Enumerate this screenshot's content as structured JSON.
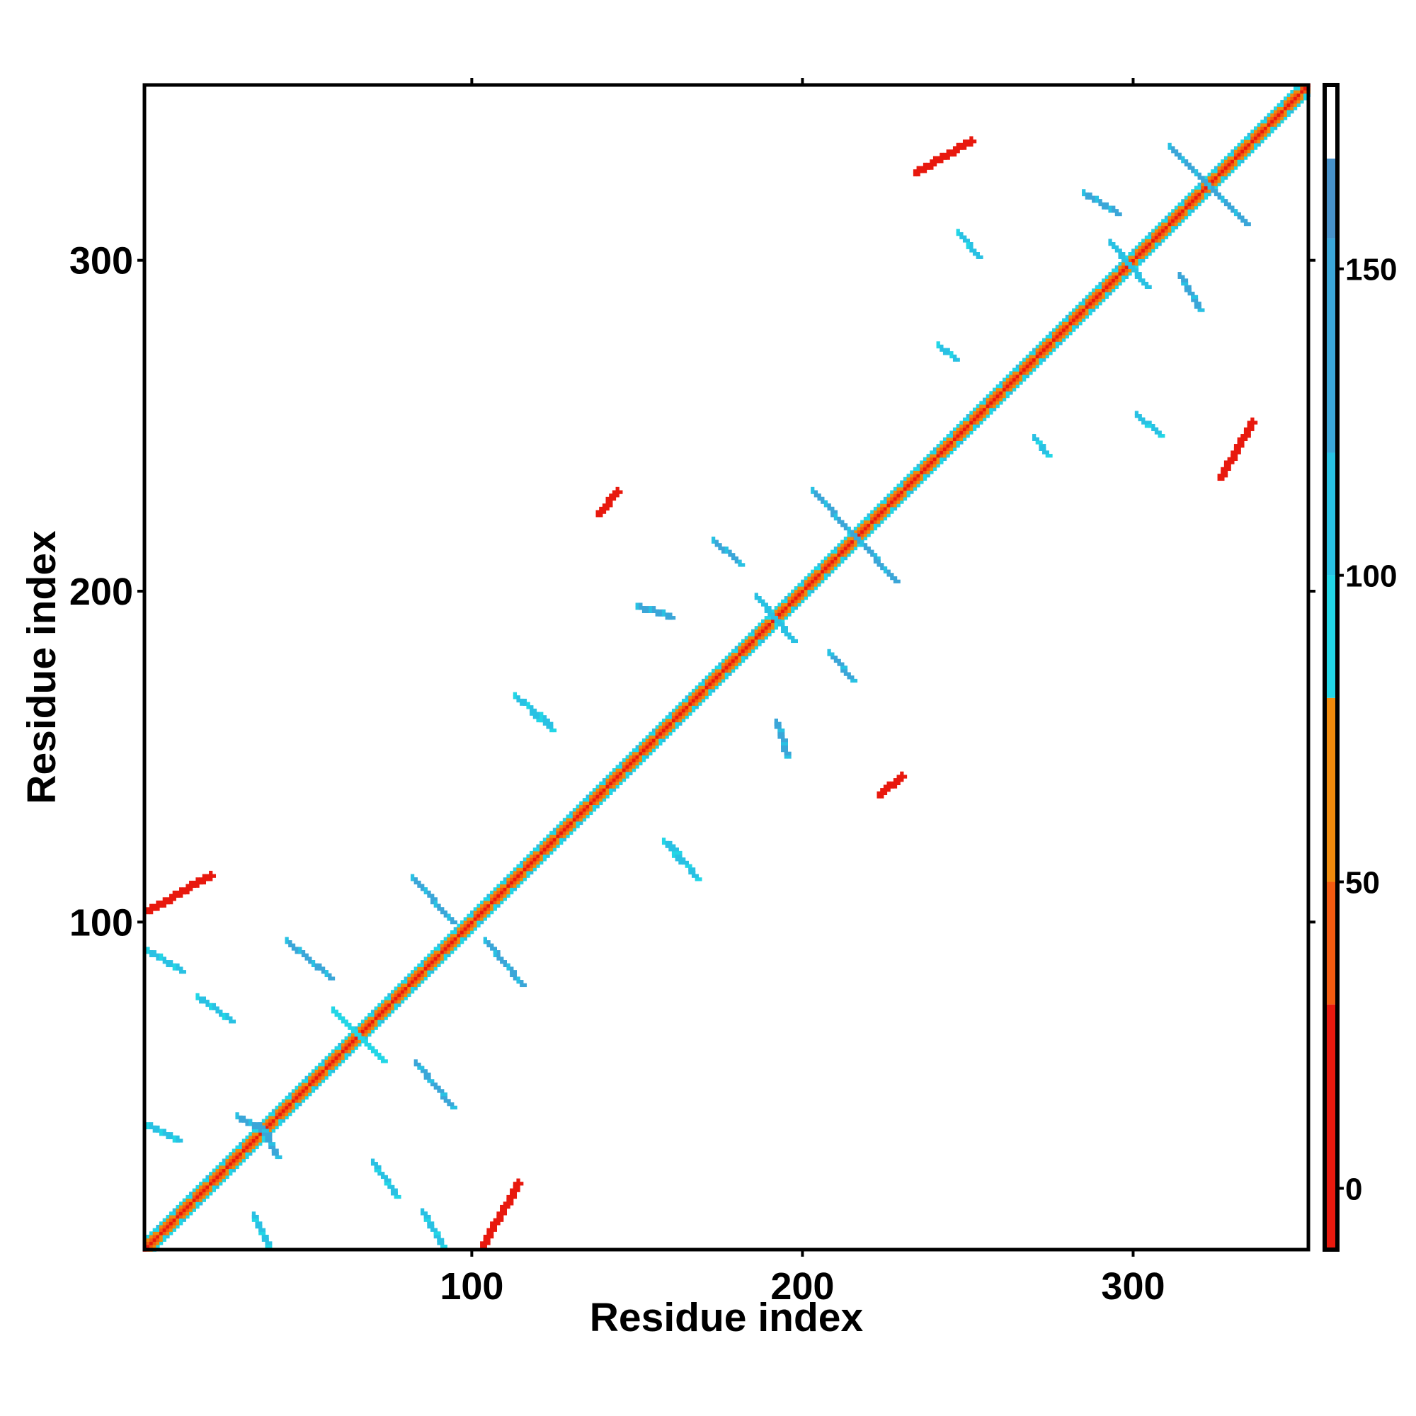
{
  "chart_data": {
    "type": "heatmap",
    "title": "",
    "xlabel": "Residue index",
    "ylabel": "Residue index",
    "xlim": [
      1,
      353
    ],
    "ylim": [
      1,
      353
    ],
    "x_ticks": [
      100,
      200,
      300
    ],
    "y_ticks": [
      100,
      200,
      300
    ],
    "colorbar": {
      "range": [
        -10,
        180
      ],
      "ticks": [
        0,
        50,
        100,
        150
      ],
      "bands": [
        {
          "from": -10,
          "to": 30,
          "color": "#e8190e"
        },
        {
          "from": 30,
          "to": 50,
          "color": "#f35b10"
        },
        {
          "from": 50,
          "to": 80,
          "color": "#f08a0c"
        },
        {
          "from": 80,
          "to": 100,
          "color": "#22d6e6"
        },
        {
          "from": 100,
          "to": 120,
          "color": "#29c1e3"
        },
        {
          "from": 120,
          "to": 155,
          "color": "#3ba6d8"
        },
        {
          "from": 155,
          "to": 168,
          "color": "#4791c9"
        },
        {
          "from": 168,
          "to": 180,
          "color": "#ffffff"
        }
      ]
    },
    "diagonal": {
      "from": 1,
      "to": 353
    },
    "contact_segments": [
      {
        "x1": 2,
        "y1": 103,
        "x2": 21,
        "y2": 114,
        "value": 25
      },
      {
        "x1": 103,
        "y1": 2,
        "x2": 114,
        "y2": 21,
        "value": 25
      },
      {
        "x1": 223,
        "y1": 138,
        "x2": 230,
        "y2": 144,
        "value": 25
      },
      {
        "x1": 138,
        "y1": 223,
        "x2": 144,
        "y2": 230,
        "value": 25
      },
      {
        "x1": 234,
        "y1": 326,
        "x2": 251,
        "y2": 336,
        "value": 25
      },
      {
        "x1": 326,
        "y1": 234,
        "x2": 336,
        "y2": 251,
        "value": 25
      },
      {
        "x1": 2,
        "y1": 91,
        "x2": 12,
        "y2": 85,
        "value": 105
      },
      {
        "x1": 91,
        "y1": 2,
        "x2": 85,
        "y2": 12,
        "value": 105
      },
      {
        "x1": 17,
        "y1": 77,
        "x2": 27,
        "y2": 70,
        "value": 100
      },
      {
        "x1": 77,
        "y1": 17,
        "x2": 70,
        "y2": 27,
        "value": 100
      },
      {
        "x1": 2,
        "y1": 38,
        "x2": 11,
        "y2": 34,
        "value": 110
      },
      {
        "x1": 38,
        "y1": 2,
        "x2": 34,
        "y2": 11,
        "value": 110
      },
      {
        "x1": 44,
        "y1": 94,
        "x2": 57,
        "y2": 83,
        "value": 125
      },
      {
        "x1": 94,
        "y1": 44,
        "x2": 83,
        "y2": 57,
        "value": 125
      },
      {
        "x1": 58,
        "y1": 73,
        "x2": 73,
        "y2": 58,
        "value": 95
      },
      {
        "x1": 82,
        "y1": 113,
        "x2": 94,
        "y2": 100,
        "value": 125
      },
      {
        "x1": 104,
        "y1": 94,
        "x2": 115,
        "y2": 81,
        "value": 125
      },
      {
        "x1": 203,
        "y1": 230,
        "x2": 228,
        "y2": 203,
        "value": 125
      },
      {
        "x1": 311,
        "y1": 334,
        "x2": 334,
        "y2": 311,
        "value": 125
      },
      {
        "x1": 186,
        "y1": 198,
        "x2": 197,
        "y2": 185,
        "value": 115
      },
      {
        "x1": 293,
        "y1": 305,
        "x2": 304,
        "y2": 292,
        "value": 115
      },
      {
        "x1": 150,
        "y1": 195,
        "x2": 160,
        "y2": 192,
        "value": 120
      },
      {
        "x1": 195,
        "y1": 150,
        "x2": 192,
        "y2": 160,
        "value": 120
      },
      {
        "x1": 158,
        "y1": 124,
        "x2": 163,
        "y2": 118,
        "value": 105
      },
      {
        "x1": 124,
        "y1": 158,
        "x2": 118,
        "y2": 163,
        "value": 105
      },
      {
        "x1": 173,
        "y1": 215,
        "x2": 181,
        "y2": 208,
        "value": 125
      },
      {
        "x1": 215,
        "y1": 173,
        "x2": 208,
        "y2": 181,
        "value": 125
      },
      {
        "x1": 285,
        "y1": 320,
        "x2": 295,
        "y2": 314,
        "value": 120
      },
      {
        "x1": 320,
        "y1": 285,
        "x2": 314,
        "y2": 295,
        "value": 120
      },
      {
        "x1": 247,
        "y1": 308,
        "x2": 253,
        "y2": 301,
        "value": 110
      },
      {
        "x1": 308,
        "y1": 247,
        "x2": 301,
        "y2": 253,
        "value": 110
      },
      {
        "x1": 241,
        "y1": 274,
        "x2": 246,
        "y2": 270,
        "value": 100
      },
      {
        "x1": 274,
        "y1": 241,
        "x2": 270,
        "y2": 246,
        "value": 100
      },
      {
        "x1": 29,
        "y1": 41,
        "x2": 38,
        "y2": 36,
        "value": 120
      },
      {
        "x1": 41,
        "y1": 29,
        "x2": 36,
        "y2": 38,
        "value": 120
      },
      {
        "x1": 113,
        "y1": 168,
        "x2": 123,
        "y2": 160,
        "value": 110
      },
      {
        "x1": 168,
        "y1": 113,
        "x2": 160,
        "y2": 123,
        "value": 110
      }
    ]
  }
}
